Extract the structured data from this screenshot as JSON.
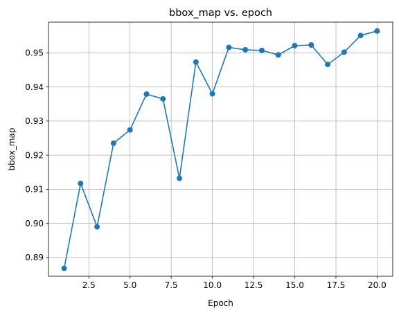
{
  "chart_data": {
    "type": "line",
    "title": "bbox_map vs. epoch",
    "xlabel": "Epoch",
    "ylabel": "bbox_map",
    "xlim": [
      0.05,
      20.95
    ],
    "ylim": [
      0.8845,
      0.959
    ],
    "grid": true,
    "xticks": [
      2.5,
      5.0,
      7.5,
      10.0,
      12.5,
      15.0,
      17.5,
      20.0
    ],
    "xtick_labels": [
      "2.5",
      "5.0",
      "7.5",
      "10.0",
      "12.5",
      "15.0",
      "17.5",
      "20.0"
    ],
    "yticks": [
      0.89,
      0.9,
      0.91,
      0.92,
      0.93,
      0.94,
      0.95
    ],
    "ytick_labels": [
      "0.89",
      "0.90",
      "0.91",
      "0.92",
      "0.93",
      "0.94",
      "0.95"
    ],
    "series": [
      {
        "name": "bbox_map",
        "color": "#1f77b4",
        "marker": "circle",
        "x": [
          1,
          2,
          3,
          4,
          5,
          6,
          7,
          8,
          9,
          10,
          11,
          12,
          13,
          14,
          15,
          16,
          17,
          18,
          19,
          20
        ],
        "values": [
          0.8868,
          0.9117,
          0.899,
          0.9235,
          0.9274,
          0.9379,
          0.9365,
          0.9132,
          0.9473,
          0.938,
          0.9516,
          0.9509,
          0.9507,
          0.9494,
          0.9521,
          0.9523,
          0.9466,
          0.9502,
          0.9551,
          0.9564
        ]
      }
    ]
  }
}
